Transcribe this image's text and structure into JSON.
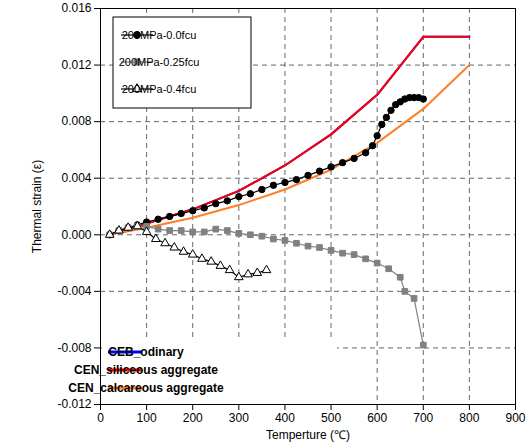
{
  "chart_data": {
    "type": "line",
    "x_label": "Temperture (℃)",
    "y_label": "Thermal strain (ε)",
    "xlim": [
      0,
      900
    ],
    "xticks": [
      0,
      100,
      200,
      300,
      400,
      500,
      600,
      700,
      800,
      900
    ],
    "ylim": [
      -0.012,
      0.016
    ],
    "yticks": [
      -0.012,
      -0.008,
      -0.004,
      {
        "value": 0,
        "label": "0.000"
      },
      0.004,
      0.008,
      0.012,
      0.016
    ],
    "grid": true,
    "legend": "upper left",
    "series": [
      {
        "name": "200MPa-0.0fcu",
        "color": "#000000",
        "marker": "circle",
        "line_style": "solid",
        "x": [
          20,
          40,
          60,
          80,
          100,
          125,
          150,
          175,
          200,
          225,
          250,
          275,
          300,
          325,
          350,
          375,
          400,
          425,
          450,
          475,
          500,
          525,
          550,
          575,
          590,
          600,
          610,
          620,
          630,
          640,
          650,
          660,
          670,
          680,
          690,
          700
        ],
        "values": [
          0,
          0.0003,
          0.0005,
          0.0007,
          0.0009,
          0.0011,
          0.0013,
          0.0015,
          0.0017,
          0.0019,
          0.0022,
          0.0024,
          0.0027,
          0.0029,
          0.0032,
          0.0035,
          0.0037,
          0.0039,
          0.0042,
          0.0045,
          0.0048,
          0.0051,
          0.0054,
          0.0058,
          0.0063,
          0.007,
          0.0078,
          0.0083,
          0.0088,
          0.0092,
          0.0094,
          0.0096,
          0.0097,
          0.0097,
          0.0097,
          0.0096
        ]
      },
      {
        "name": "200MPa-0.25fcu",
        "color": "#808080",
        "marker": "square",
        "line_style": "solid",
        "x": [
          20,
          40,
          60,
          80,
          100,
          125,
          150,
          175,
          200,
          225,
          250,
          275,
          300,
          325,
          350,
          375,
          400,
          425,
          450,
          475,
          500,
          525,
          550,
          575,
          600,
          625,
          650,
          660,
          680,
          700
        ],
        "values": [
          0,
          0.0003,
          0.0005,
          0.0006,
          0.0006,
          0.0004,
          0.0003,
          0.0003,
          0.0002,
          0.0002,
          0.0004,
          0.0003,
          0.0001,
          0.0,
          -0.0001,
          -0.0003,
          -0.0004,
          -0.0006,
          -0.0008,
          -0.0009,
          -0.0011,
          -0.0013,
          -0.0014,
          -0.0017,
          -0.002,
          -0.0024,
          -0.003,
          -0.004,
          -0.0045,
          -0.0078
        ]
      },
      {
        "name": "200MPa-0.4fcu",
        "color": "#000000",
        "marker": "triangle_open",
        "line_style": "solid",
        "x": [
          20,
          40,
          60,
          80,
          100,
          120,
          140,
          160,
          180,
          200,
          220,
          240,
          260,
          280,
          300,
          320,
          340,
          360
        ],
        "values": [
          0,
          0.0003,
          0.0005,
          0.0006,
          0.0002,
          -0.0003,
          -0.0006,
          -0.0009,
          -0.0012,
          -0.0014,
          -0.0017,
          -0.0019,
          -0.0022,
          -0.0025,
          -0.003,
          -0.0028,
          -0.0027,
          -0.0025
        ]
      },
      {
        "name": "CEB_odinary",
        "color": "#0000ff",
        "line_style": "solid",
        "x": [
          20,
          100,
          200,
          300,
          400,
          500,
          600,
          700,
          800
        ],
        "values": [
          0,
          0.0008,
          0.0018,
          0.0031,
          0.0049,
          0.0071,
          0.0099,
          0.014,
          0.014
        ]
      },
      {
        "name": "CEN_siliceous aggregate",
        "color": "#ff0000",
        "line_style": "solid",
        "x": [
          20,
          100,
          200,
          300,
          400,
          500,
          600,
          700,
          800
        ],
        "values": [
          0,
          0.0008,
          0.0018,
          0.0031,
          0.0049,
          0.0071,
          0.0099,
          0.014,
          0.014
        ]
      },
      {
        "name": "CEN_calcareous aggregate",
        "color": "#ff7f27",
        "line_style": "solid",
        "x": [
          20,
          100,
          200,
          300,
          400,
          500,
          600,
          700,
          800
        ],
        "values": [
          0,
          0.0005,
          0.0012,
          0.0021,
          0.0032,
          0.0046,
          0.0065,
          0.0089,
          0.012
        ]
      }
    ]
  }
}
